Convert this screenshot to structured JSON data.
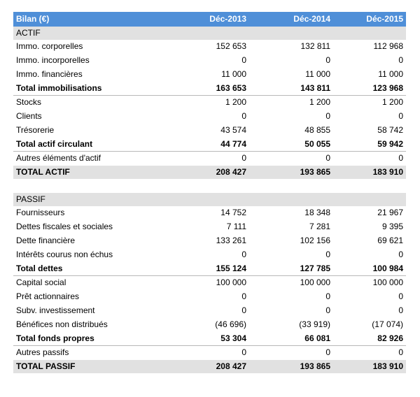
{
  "header": {
    "label": "Bilan (€)",
    "years": [
      "Déc-2013",
      "Déc-2014",
      "Déc-2015"
    ]
  },
  "rows": [
    {
      "type": "section",
      "label": "ACTIF",
      "values": [
        "",
        "",
        ""
      ]
    },
    {
      "type": "row",
      "label": "Immo. corporelles",
      "values": [
        "152 653",
        "132 811",
        "112 968"
      ]
    },
    {
      "type": "row",
      "label": "Immo. incorporelles",
      "values": [
        "0",
        "0",
        "0"
      ]
    },
    {
      "type": "row",
      "label": "Immo. financières",
      "values": [
        "11 000",
        "11 000",
        "11 000"
      ]
    },
    {
      "type": "total",
      "label": "Total immobilisations",
      "values": [
        "163 653",
        "143 811",
        "123 968"
      ]
    },
    {
      "type": "row",
      "label": "Stocks",
      "values": [
        "1 200",
        "1 200",
        "1 200"
      ]
    },
    {
      "type": "row",
      "label": "Clients",
      "values": [
        "0",
        "0",
        "0"
      ]
    },
    {
      "type": "row",
      "label": "Trésorerie",
      "values": [
        "43 574",
        "48 855",
        "58 742"
      ]
    },
    {
      "type": "total",
      "label": "Total actif circulant",
      "values": [
        "44 774",
        "50 055",
        "59 942"
      ]
    },
    {
      "type": "row",
      "label": "Autres éléments d'actif",
      "values": [
        "0",
        "0",
        "0"
      ]
    },
    {
      "type": "grand",
      "label": "TOTAL ACTIF",
      "values": [
        "208 427",
        "193 865",
        "183 910"
      ]
    },
    {
      "type": "blank",
      "label": "",
      "values": [
        "",
        "",
        ""
      ]
    },
    {
      "type": "section",
      "label": "PASSIF",
      "values": [
        "",
        "",
        ""
      ]
    },
    {
      "type": "row",
      "label": "Fournisseurs",
      "values": [
        "14 752",
        "18 348",
        "21 967"
      ]
    },
    {
      "type": "row",
      "label": "Dettes fiscales et sociales",
      "values": [
        "7 111",
        "7 281",
        "9 395"
      ]
    },
    {
      "type": "row",
      "label": "Dette financière",
      "values": [
        "133 261",
        "102 156",
        "69 621"
      ]
    },
    {
      "type": "row",
      "label": "Intérêts courus non échus",
      "values": [
        "0",
        "0",
        "0"
      ]
    },
    {
      "type": "total",
      "label": "Total dettes",
      "values": [
        "155 124",
        "127 785",
        "100 984"
      ]
    },
    {
      "type": "row",
      "label": "Capital social",
      "values": [
        "100 000",
        "100 000",
        "100 000"
      ]
    },
    {
      "type": "row",
      "label": "Prêt actionnaires",
      "values": [
        "0",
        "0",
        "0"
      ]
    },
    {
      "type": "row",
      "label": "Subv. investissement",
      "values": [
        "0",
        "0",
        "0"
      ]
    },
    {
      "type": "row",
      "label": "Bénéfices non distribués",
      "values": [
        "(46 696)",
        "(33 919)",
        "(17 074)"
      ]
    },
    {
      "type": "total",
      "label": "Total fonds propres",
      "values": [
        "53 304",
        "66 081",
        "82 926"
      ]
    },
    {
      "type": "row",
      "label": "Autres passifs",
      "values": [
        "0",
        "0",
        "0"
      ]
    },
    {
      "type": "grand",
      "label": "TOTAL PASSIF",
      "values": [
        "208 427",
        "193 865",
        "183 910"
      ]
    }
  ]
}
